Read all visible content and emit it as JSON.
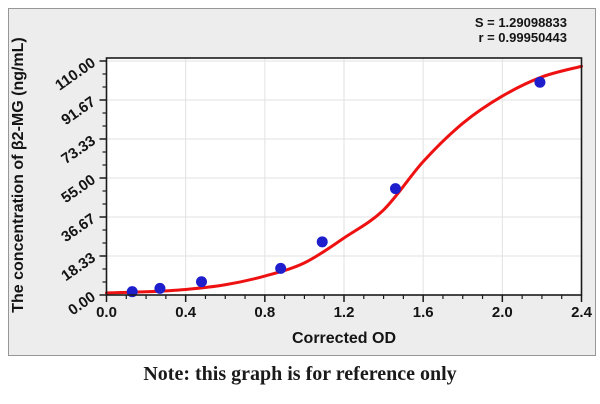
{
  "figure": {
    "note": "Note: this graph is for reference only"
  },
  "chart_data": {
    "type": "scatter",
    "title": "",
    "xlabel": "Corrected OD",
    "ylabel": "The concentration of β2-MG (ng/mL)",
    "xlim": [
      0,
      2.4
    ],
    "ylim": [
      0,
      110
    ],
    "grid": true,
    "legend": "none",
    "x_ticks": {
      "values": [
        0,
        0.4,
        0.8,
        1.2,
        1.6,
        2.0,
        2.4
      ],
      "labels": [
        "0.0",
        "0.4",
        "0.8",
        "1.2",
        "1.6",
        "2.0",
        "2.4"
      ],
      "minor_step": 0.1
    },
    "y_ticks": {
      "values": [
        0,
        18.333,
        36.667,
        55,
        73.333,
        91.667,
        110
      ],
      "labels": [
        "0.00",
        "18.33",
        "36.67",
        "55.00",
        "73.33",
        "91.67",
        "110.00"
      ],
      "minors_per_interval": 2
    },
    "series": [
      {
        "name": "fitted-curve",
        "type": "line",
        "color": "#ee1111",
        "width": 3,
        "points": [
          [
            0.0,
            1.0
          ],
          [
            0.2,
            1.5
          ],
          [
            0.4,
            2.6
          ],
          [
            0.6,
            4.8
          ],
          [
            0.8,
            8.9
          ],
          [
            1.0,
            15.1
          ],
          [
            1.2,
            26.8
          ],
          [
            1.4,
            40.0
          ],
          [
            1.6,
            62.7
          ],
          [
            1.8,
            80.7
          ],
          [
            2.0,
            93.5
          ],
          [
            2.2,
            102.5
          ],
          [
            2.4,
            107.5
          ]
        ]
      },
      {
        "name": "standard-points",
        "type": "scatter",
        "color": "#1e1ecd",
        "marker_radius": 5.5,
        "points": [
          [
            0.13,
            1.56
          ],
          [
            0.27,
            3.13
          ],
          [
            0.48,
            6.25
          ],
          [
            0.88,
            12.5
          ],
          [
            1.09,
            25
          ],
          [
            1.46,
            50
          ],
          [
            2.19,
            100
          ]
        ]
      }
    ],
    "annotations": [
      {
        "text": "S = 1.29098833"
      },
      {
        "text": "r = 0.99950443"
      }
    ],
    "colors": {
      "panel_background": "#ededed",
      "plot_background": "#ffffff",
      "grid": "#e2e2e2",
      "frame": "#1a1a1a",
      "text": "#141414"
    }
  }
}
